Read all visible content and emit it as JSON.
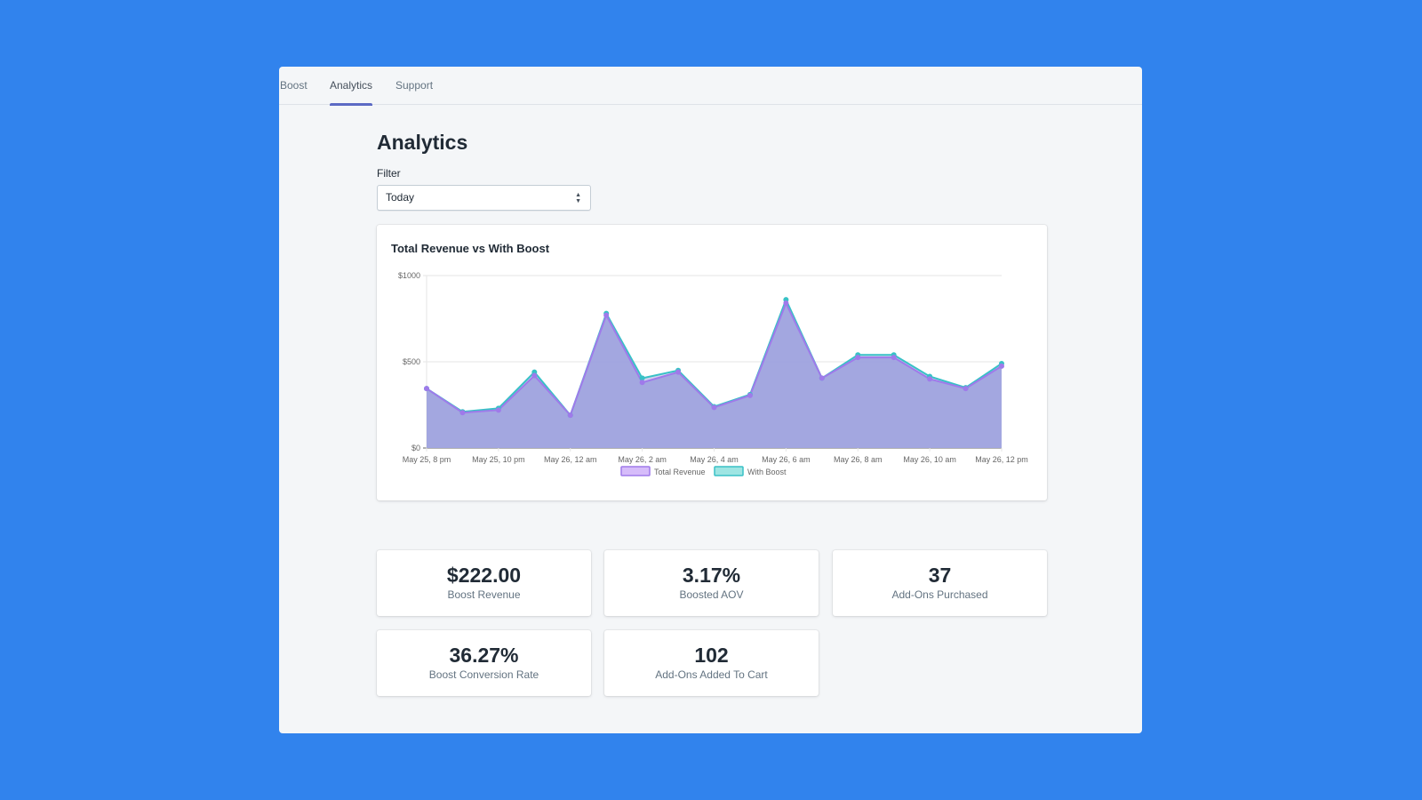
{
  "nav": {
    "tabs": [
      {
        "label": "Boost",
        "active": false
      },
      {
        "label": "Analytics",
        "active": true
      },
      {
        "label": "Support",
        "active": false
      }
    ]
  },
  "page": {
    "title": "Analytics",
    "filter_label": "Filter",
    "filter_value": "Today"
  },
  "chart_data": {
    "type": "area",
    "title": "Total Revenue vs With Boost",
    "ylim": [
      0,
      1000
    ],
    "y_ticks": [
      "$0",
      "$500",
      "$1000"
    ],
    "x_tick_labels": [
      "May 25, 8 pm",
      "May 25, 10 pm",
      "May 26, 12 am",
      "May 26, 2 am",
      "May 26, 4 am",
      "May 26, 6 am",
      "May 26, 8 am",
      "May 26, 10 am",
      "May 26, 12 pm"
    ],
    "x": [
      "May 25, 8 pm",
      "May 25, 9 pm",
      "May 25, 10 pm",
      "May 25, 11 pm",
      "May 26, 12 am",
      "May 26, 1 am",
      "May 26, 2 am",
      "May 26, 3 am",
      "May 26, 4 am",
      "May 26, 5 am",
      "May 26, 6 am",
      "May 26, 7 am",
      "May 26, 8 am",
      "May 26, 9 am",
      "May 26, 10 am",
      "May 26, 11 am",
      "May 26, 12 pm"
    ],
    "series": [
      {
        "name": "Total Revenue",
        "color": "#9f7aea",
        "fill": "#d6bcfa",
        "values": [
          345,
          205,
          220,
          420,
          190,
          770,
          380,
          440,
          235,
          305,
          840,
          405,
          525,
          525,
          400,
          345,
          475
        ]
      },
      {
        "name": "With Boost",
        "color": "#38c1c6",
        "fill": "#9ee5e3",
        "values": [
          345,
          210,
          230,
          440,
          190,
          780,
          405,
          450,
          240,
          310,
          860,
          405,
          540,
          540,
          415,
          350,
          490
        ]
      }
    ],
    "legend_position": "bottom",
    "grid": true,
    "area_color": "#a0a4de"
  },
  "stats": [
    {
      "value": "$222.00",
      "label": "Boost Revenue"
    },
    {
      "value": "3.17%",
      "label": "Boosted AOV"
    },
    {
      "value": "37",
      "label": "Add-Ons Purchased"
    },
    {
      "value": "36.27%",
      "label": "Boost Conversion Rate"
    },
    {
      "value": "102",
      "label": "Add-Ons Added To Cart"
    }
  ]
}
